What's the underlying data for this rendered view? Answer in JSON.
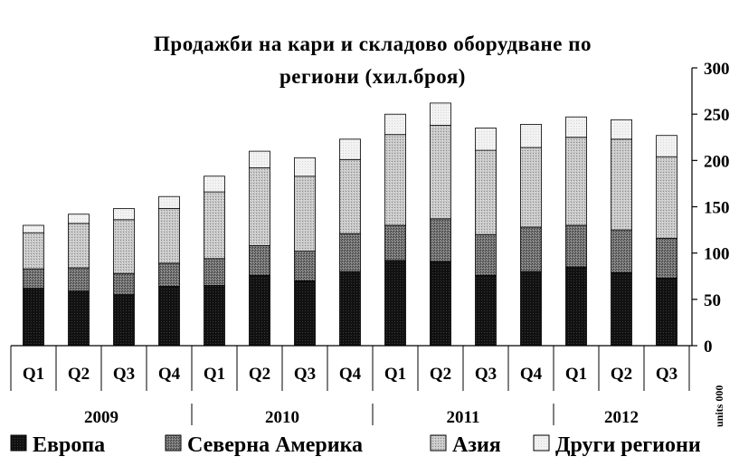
{
  "chart_data": {
    "type": "bar",
    "stacked": true,
    "title": "Продажби на кари и складово оборудване по региони (хил.броя)",
    "title_lines": [
      "Продажби на кари и складово оборудване по",
      "региони (хил.броя)"
    ],
    "ylabel": "units 000",
    "ylim": [
      0,
      300
    ],
    "yticks": [
      0,
      50,
      100,
      150,
      200,
      250,
      300
    ],
    "grid": false,
    "legend_position": "bottom",
    "categories": [
      "Q1",
      "Q2",
      "Q3",
      "Q4",
      "Q1",
      "Q2",
      "Q3",
      "Q4",
      "Q1",
      "Q2",
      "Q3",
      "Q4",
      "Q1",
      "Q2",
      "Q3"
    ],
    "groups": [
      {
        "label": "2009",
        "count": 4
      },
      {
        "label": "2010",
        "count": 4
      },
      {
        "label": "2011",
        "count": 4
      },
      {
        "label": "2012",
        "count": 3
      }
    ],
    "series": [
      {
        "name": "Европа",
        "color": "#000000",
        "values": [
          62,
          59,
          55,
          64,
          65,
          76,
          70,
          80,
          92,
          91,
          76,
          80,
          85,
          79,
          73
        ]
      },
      {
        "name": "Северна Америка",
        "color": "#5a5a5a",
        "values": [
          21,
          25,
          23,
          25,
          29,
          32,
          32,
          41,
          38,
          46,
          44,
          48,
          45,
          46,
          43
        ]
      },
      {
        "name": "Азия",
        "color": "#b4b4b4",
        "values": [
          39,
          48,
          58,
          59,
          72,
          84,
          81,
          80,
          98,
          101,
          91,
          86,
          95,
          98,
          88
        ]
      },
      {
        "name": "Други региони",
        "color": "#e9e9e9",
        "values": [
          8,
          10,
          12,
          13,
          17,
          18,
          20,
          22,
          22,
          24,
          24,
          25,
          22,
          21,
          23
        ]
      }
    ]
  }
}
